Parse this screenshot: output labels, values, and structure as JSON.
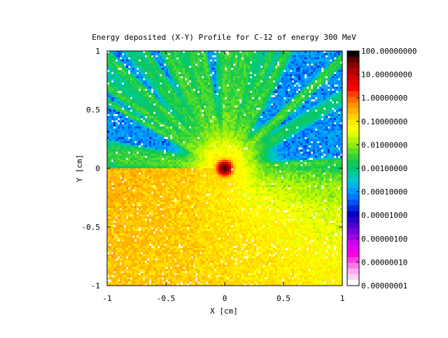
{
  "chart_data": {
    "type": "heatmap",
    "title": "Energy deposited (X-Y) Profile for C-12 of energy  300 MeV",
    "xlabel": "X [cm]",
    "ylabel": "Y [cm]",
    "xlim": [
      -1,
      1
    ],
    "ylim": [
      -1,
      1
    ],
    "x_ticks": [
      -1,
      -0.5,
      0,
      0.5,
      1
    ],
    "y_ticks": [
      -1,
      -0.5,
      0,
      0.5,
      1
    ],
    "x_tick_labels": [
      "-1",
      "-0.5",
      "0",
      "0.5",
      "1"
    ],
    "y_tick_labels": [
      "-1",
      "-0.5",
      "0",
      "0.5",
      "1"
    ],
    "grid": false,
    "colorbar": {
      "scale": "log",
      "range": [
        1e-08,
        100
      ],
      "tick_labels": [
        "100.00000000",
        "10.00000000",
        "1.00000000",
        "0.10000000",
        "0.01000000",
        "0.00100000",
        "0.00010000",
        "0.00001000",
        "0.00000100",
        "0.00000010",
        "0.00000001"
      ],
      "colors_top_to_bottom": [
        "#000000",
        "#5a0000",
        "#8c0000",
        "#b40000",
        "#d20000",
        "#e60000",
        "#ff0000",
        "#ff3c00",
        "#ff6e00",
        "#ff9600",
        "#ffb400",
        "#ffd200",
        "#ffeb00",
        "#ffff00",
        "#e1ff00",
        "#b9f500",
        "#8ceb14",
        "#5adc28",
        "#32d23c",
        "#14c850",
        "#00c878",
        "#00c8a0",
        "#00c8c8",
        "#00b4e6",
        "#0096ff",
        "#0078ff",
        "#0050f0",
        "#0028dc",
        "#0000c8",
        "#2800c8",
        "#5000d2",
        "#7800dc",
        "#a000e6",
        "#c800f0",
        "#e600f0",
        "#ff00e6",
        "#ff3ce6",
        "#ff78e6",
        "#ffaaf0",
        "#ffd2f5",
        "#ffffff"
      ]
    },
    "center": {
      "x": 0,
      "y": 0,
      "peak_value": 50
    },
    "description_values": {
      "core_level": 1.0,
      "halo_level": 0.1,
      "ray_level": 0.005,
      "background_level": 0.0001
    }
  }
}
